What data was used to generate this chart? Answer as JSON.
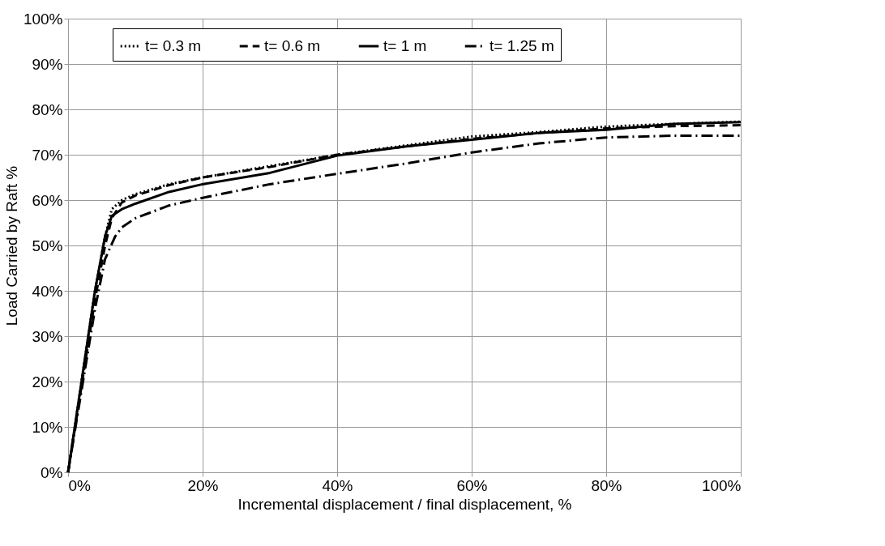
{
  "chart_data": {
    "type": "line",
    "xlabel": "Incremental displacement / final displacement, %",
    "ylabel": "Load Carried by Raft %",
    "xlim": [
      0,
      100
    ],
    "ylim": [
      0,
      100
    ],
    "xticks": [
      {
        "value": 0,
        "label": "0%"
      },
      {
        "value": 20,
        "label": "20%"
      },
      {
        "value": 40,
        "label": "40%"
      },
      {
        "value": 60,
        "label": "60%"
      },
      {
        "value": 80,
        "label": "80%"
      },
      {
        "value": 100,
        "label": "100%"
      }
    ],
    "yticks": [
      {
        "value": 0,
        "label": "0%"
      },
      {
        "value": 10,
        "label": "10%"
      },
      {
        "value": 20,
        "label": "20%"
      },
      {
        "value": 30,
        "label": "30%"
      },
      {
        "value": 40,
        "label": "40%"
      },
      {
        "value": 50,
        "label": "50%"
      },
      {
        "value": 60,
        "label": "60%"
      },
      {
        "value": 70,
        "label": "70%"
      },
      {
        "value": 80,
        "label": "80%"
      },
      {
        "value": 90,
        "label": "90%"
      },
      {
        "value": 100,
        "label": "100%"
      }
    ],
    "grid": true,
    "legend": "top",
    "marker": "none",
    "series": [
      {
        "name": "t= 0.3 m",
        "color": "#000000",
        "line_style": "dotted",
        "x": [
          0,
          2,
          4,
          5.5,
          6.5,
          8,
          10,
          15,
          20,
          30,
          40,
          50,
          60,
          70,
          80,
          90,
          100
        ],
        "values": [
          0,
          20,
          40,
          52,
          58,
          60,
          61.3,
          63.5,
          65,
          67.5,
          70,
          72,
          74,
          75,
          76.2,
          76.8,
          77.3
        ]
      },
      {
        "name": "t= 0.6 m",
        "color": "#000000",
        "line_style": "dashed",
        "x": [
          0,
          2,
          4,
          5.5,
          6.5,
          8,
          10,
          15,
          20,
          30,
          40,
          50,
          60,
          70,
          80,
          90,
          100
        ],
        "values": [
          0,
          19,
          38,
          50,
          56,
          59.5,
          61,
          63.3,
          65,
          67.3,
          70,
          71.8,
          73.5,
          74.8,
          75.8,
          76.3,
          76.5
        ]
      },
      {
        "name": "t= 1 m",
        "color": "#000000",
        "line_style": "solid",
        "x": [
          0,
          2,
          4,
          5.5,
          6.5,
          8,
          10,
          15,
          20,
          30,
          40,
          50,
          60,
          70,
          80,
          90,
          100
        ],
        "values": [
          0,
          20,
          40,
          52,
          56.5,
          58,
          59.2,
          61.8,
          63.5,
          66,
          69.8,
          71.8,
          73.3,
          74.8,
          75.5,
          76.8,
          77.2
        ]
      },
      {
        "name": "t= 1.25 m",
        "color": "#000000",
        "line_style": "dashdot",
        "x": [
          0,
          2,
          4,
          5.5,
          7,
          8,
          10,
          15,
          20,
          30,
          40,
          50,
          60,
          70,
          80,
          90,
          100
        ],
        "values": [
          0,
          18,
          36,
          47,
          52,
          54,
          56,
          58.8,
          60.5,
          63.5,
          65.8,
          68,
          70.5,
          72.5,
          73.8,
          74.2,
          74.2
        ]
      }
    ]
  }
}
